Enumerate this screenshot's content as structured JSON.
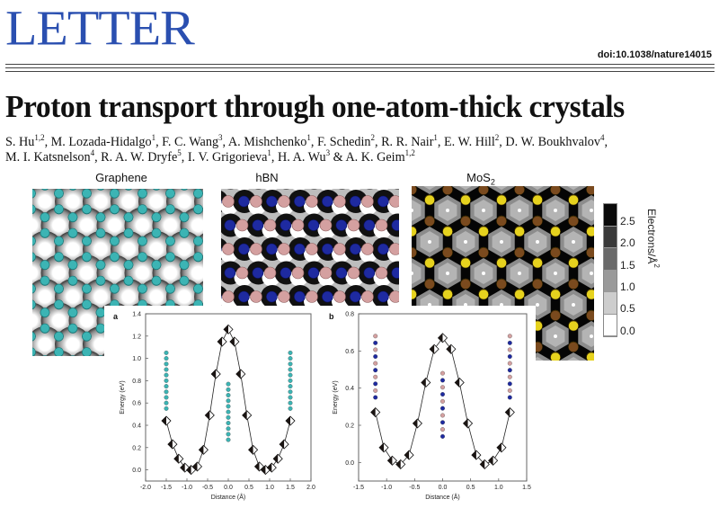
{
  "header": {
    "section": "LETTER",
    "doi": "doi:10.1038/nature14015"
  },
  "article": {
    "title": "Proton transport through one-atom-thick crystals",
    "authors_line1": [
      {
        "name": "S. Hu",
        "aff": "1,2"
      },
      {
        "name": "M. Lozada-Hidalgo",
        "aff": "1"
      },
      {
        "name": "F. C. Wang",
        "aff": "3"
      },
      {
        "name": "A. Mishchenko",
        "aff": "1"
      },
      {
        "name": "F. Schedin",
        "aff": "2"
      },
      {
        "name": "R. R. Nair",
        "aff": "1"
      },
      {
        "name": "E. W. Hill",
        "aff": "2"
      },
      {
        "name": "D. W. Boukhvalov",
        "aff": "4"
      }
    ],
    "authors_line2": [
      {
        "name": "M. I. Katsnelson",
        "aff": "4"
      },
      {
        "name": "R. A. W. Dryfe",
        "aff": "5"
      },
      {
        "name": "I. V. Grigorieva",
        "aff": "1"
      },
      {
        "name": "H. A. Wu",
        "aff": "3"
      },
      {
        "name": "A. K. Geim",
        "aff": "1,2"
      }
    ]
  },
  "figure": {
    "panels": {
      "graphene": "Graphene",
      "hbn": "hBN",
      "mos2": "MoS",
      "mos2_sub": "2"
    },
    "colorbar": {
      "label": "Electrons/Å",
      "label_sup": "2",
      "ticks": [
        "2.5",
        "2.0",
        "1.5",
        "1.0",
        "0.5",
        "0.0"
      ],
      "swatches": [
        "#0a0a0a",
        "#3a3a3a",
        "#6a6a6a",
        "#9a9a9a",
        "#cdcdcd",
        "#ffffff"
      ]
    },
    "colors": {
      "letter_blue": "#2a4fb0",
      "carbon": "#3cb4b4",
      "boron": "#d4a0a0",
      "nitrogen": "#1e2aa0",
      "sulfur": "#e6d21e",
      "molybdenum": "#7a4a1e"
    }
  },
  "chart_data": [
    {
      "panel": "a",
      "type": "line",
      "title": "",
      "xlabel": "Distance (Å)",
      "ylabel": "Energy (eV)",
      "xlim": [
        -2.0,
        2.0
      ],
      "ylim": [
        -0.1,
        1.4
      ],
      "xticks": [
        "-2.0",
        "-1.5",
        "-1.0",
        "-0.5",
        "0.0",
        "0.5",
        "1.0",
        "1.5",
        "2.0"
      ],
      "yticks": [
        "0.0",
        "0.2",
        "0.4",
        "0.6",
        "0.8",
        "1.0",
        "1.2",
        "1.4"
      ],
      "x": [
        -1.5,
        -1.35,
        -1.2,
        -1.05,
        -0.9,
        -0.75,
        -0.6,
        -0.45,
        -0.3,
        -0.15,
        0.0,
        0.15,
        0.3,
        0.45,
        0.6,
        0.75,
        0.9,
        1.05,
        1.2,
        1.35,
        1.5
      ],
      "values": [
        0.44,
        0.23,
        0.1,
        0.02,
        0.0,
        0.03,
        0.18,
        0.49,
        0.86,
        1.15,
        1.26,
        1.15,
        0.86,
        0.49,
        0.18,
        0.03,
        0.0,
        0.02,
        0.1,
        0.23,
        0.44
      ],
      "marker": "half-filled diamond",
      "insets": "graphene atom chains at x=-1.5, 0.0, 1.5"
    },
    {
      "panel": "b",
      "type": "line",
      "title": "",
      "xlabel": "Distance (Å)",
      "ylabel": "Energy (eV)",
      "xlim": [
        -1.5,
        1.5
      ],
      "ylim": [
        -0.1,
        0.8
      ],
      "xticks": [
        "-1.5",
        "-1.0",
        "-0.5",
        "0.0",
        "0.5",
        "1.0",
        "1.5"
      ],
      "yticks": [
        "0.0",
        "0.2",
        "0.4",
        "0.6",
        "0.8"
      ],
      "x": [
        -1.2,
        -1.05,
        -0.9,
        -0.75,
        -0.6,
        -0.45,
        -0.3,
        -0.15,
        0.0,
        0.15,
        0.3,
        0.45,
        0.6,
        0.75,
        0.9,
        1.05,
        1.2
      ],
      "values": [
        0.27,
        0.08,
        0.01,
        -0.01,
        0.04,
        0.21,
        0.43,
        0.61,
        0.67,
        0.61,
        0.43,
        0.21,
        0.04,
        -0.01,
        0.01,
        0.08,
        0.27
      ],
      "marker": "half-filled diamond",
      "insets": "hBN atom chains at x=-1.2, 0.0, 1.2"
    }
  ]
}
